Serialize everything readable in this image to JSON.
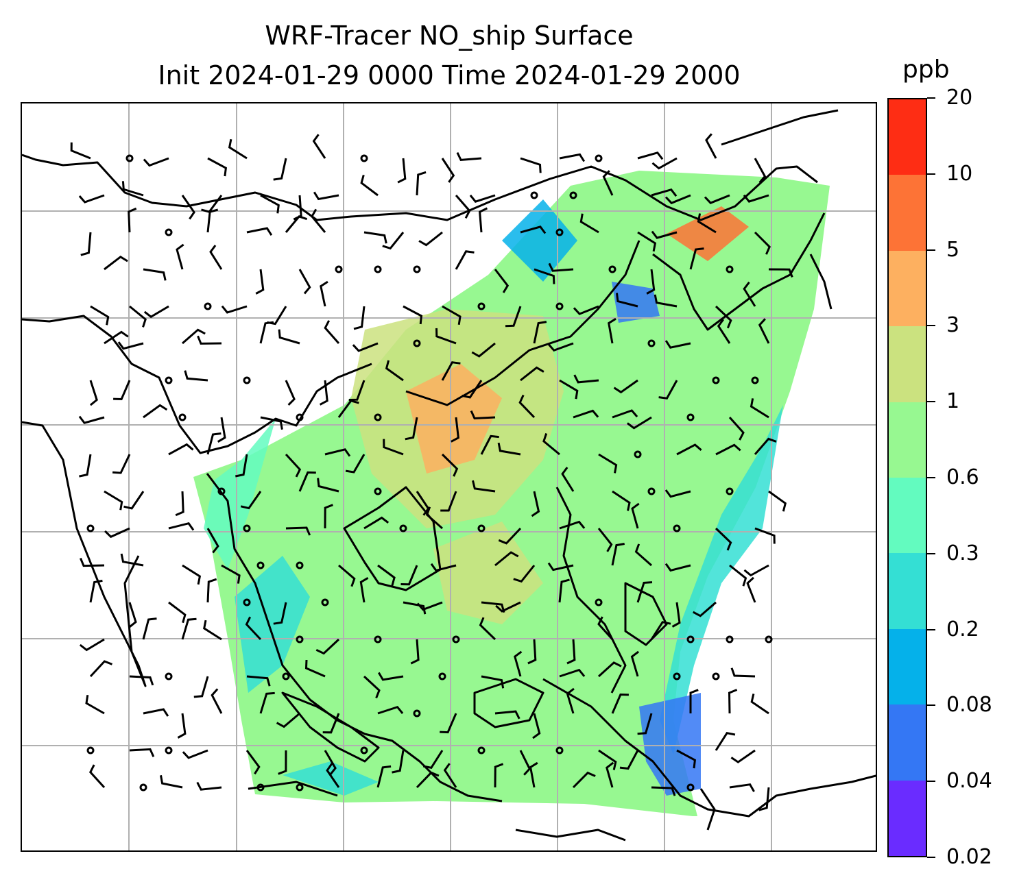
{
  "title": {
    "line1": "WRF-Tracer NO_ship Surface",
    "line2": "Init 2024-01-29 0000 Time 2024-01-29 2000"
  },
  "colorbar": {
    "unit": "ppb",
    "levels": [
      "0.02",
      "0.04",
      "0.08",
      "0.2",
      "0.3",
      "0.6",
      "1",
      "3",
      "5",
      "10",
      "20"
    ],
    "colors": [
      "#6a2cff",
      "#3477f4",
      "#05b1ea",
      "#34dfd4",
      "#63fbbf",
      "#97f891",
      "#cbe27f",
      "#fdb060",
      "#fd7336",
      "#fe2d14"
    ]
  },
  "map": {
    "field": "NO_ship",
    "level": "Surface",
    "gridlines": true,
    "coastline_color": "#000000",
    "barb_color": "#000000"
  }
}
